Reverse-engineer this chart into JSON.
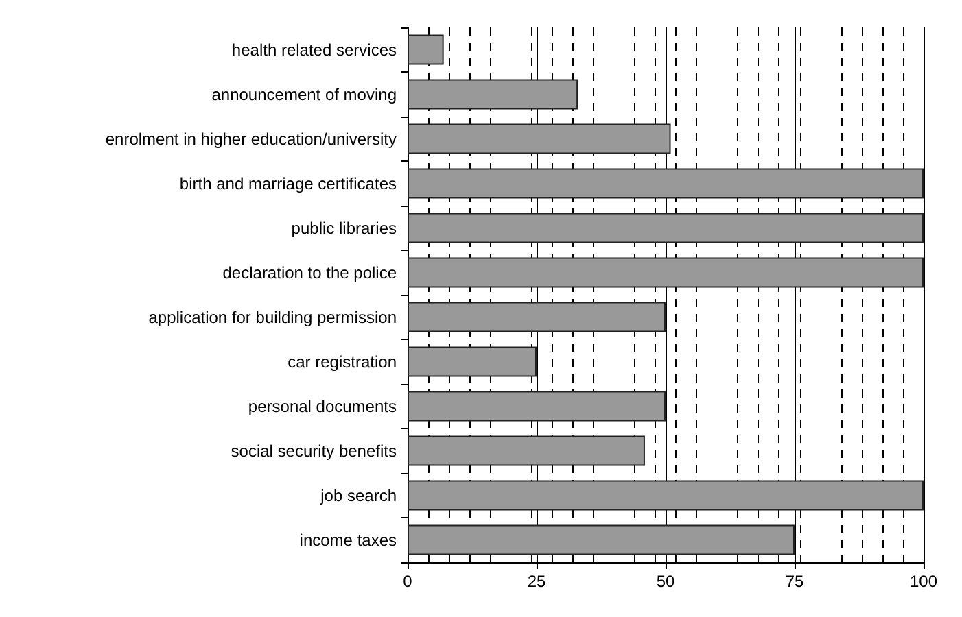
{
  "chart_data": {
    "type": "bar",
    "orientation": "horizontal",
    "categories": [
      "health related services",
      "announcement of moving",
      "enrolment in higher education/university",
      "birth and marriage certificates",
      "public libraries",
      "declaration to the police",
      "application for building permission",
      "car registration",
      "personal documents",
      "social security benefits",
      "job search",
      "income taxes"
    ],
    "values": [
      7,
      33,
      51,
      100,
      100,
      100,
      50,
      25,
      50,
      46,
      100,
      75
    ],
    "color": "#999999",
    "xlim": [
      0,
      100
    ],
    "xticks": [
      0,
      25,
      50,
      75,
      100
    ],
    "grid": "x"
  }
}
